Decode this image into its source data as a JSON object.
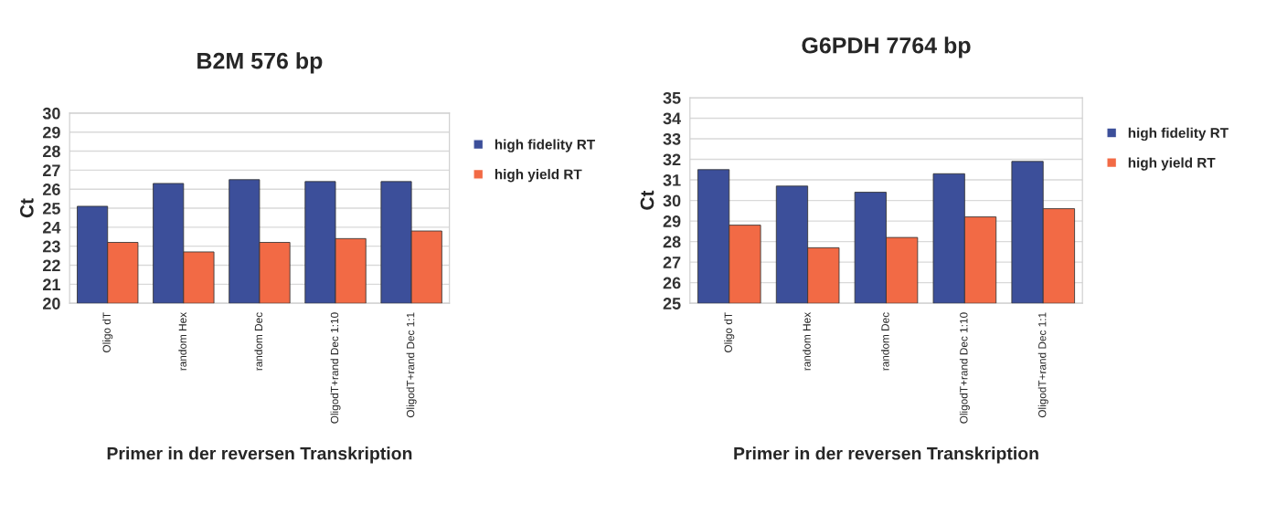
{
  "chart_data": [
    {
      "type": "bar",
      "title": "B2M 576 bp",
      "xlabel": "Primer in der reversen Transkription",
      "ylabel": "Ct",
      "categories": [
        "Oligo dT",
        "random Hex",
        "random Dec",
        "OligodT+rand Dec 1:10",
        "OligodT+rand Dec 1:1"
      ],
      "series": [
        {
          "name": "high fidelity RT",
          "color": "#3c4f9a",
          "values": [
            25.1,
            26.3,
            26.5,
            26.4,
            26.4
          ]
        },
        {
          "name": "high yield RT",
          "color": "#f26a45",
          "values": [
            23.2,
            22.7,
            23.2,
            23.4,
            23.8
          ]
        }
      ],
      "ylim": [
        20,
        30
      ],
      "yticks": [
        20,
        21,
        22,
        23,
        24,
        25,
        26,
        27,
        28,
        29,
        30
      ],
      "grid": "y",
      "legend": "right"
    },
    {
      "type": "bar",
      "title": "G6PDH 7764 bp",
      "xlabel": "Primer in der reversen Transkription",
      "ylabel": "Ct",
      "categories": [
        "Oligo dT",
        "random Hex",
        "random Dec",
        "OligodT+rand Dec 1:10",
        "OligodT+rand Dec 1:1"
      ],
      "series": [
        {
          "name": "high fidelity RT",
          "color": "#3c4f9a",
          "values": [
            31.5,
            30.7,
            30.4,
            31.3,
            31.9
          ]
        },
        {
          "name": "high yield RT",
          "color": "#f26a45",
          "values": [
            28.8,
            27.7,
            28.2,
            29.2,
            29.6
          ]
        }
      ],
      "ylim": [
        25,
        35
      ],
      "yticks": [
        25,
        26,
        27,
        28,
        29,
        30,
        31,
        32,
        33,
        34,
        35
      ],
      "grid": "y",
      "legend": "right"
    }
  ]
}
